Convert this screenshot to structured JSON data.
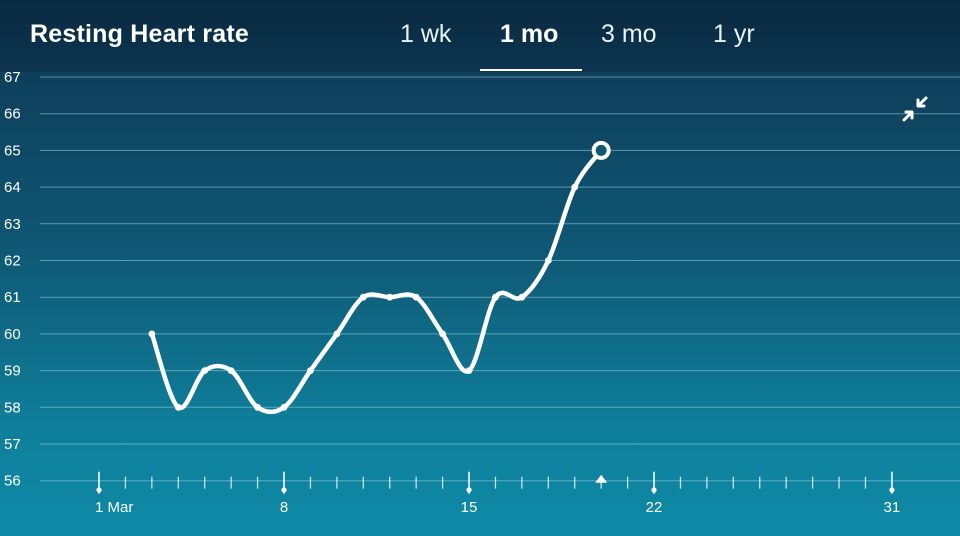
{
  "header": {
    "title": "Resting Heart rate",
    "tabs": [
      {
        "label": "1 wk",
        "active": false
      },
      {
        "label": "1 mo",
        "active": true
      },
      {
        "label": "3 mo",
        "active": false
      },
      {
        "label": "1 yr",
        "active": false
      }
    ]
  },
  "controls": {
    "collapse_icon": "collapse-arrows-icon"
  },
  "chart_data": {
    "type": "line",
    "ylim": [
      56,
      67
    ],
    "y_ticks": [
      67,
      66,
      65,
      64,
      63,
      62,
      61,
      60,
      59,
      58,
      57,
      56
    ],
    "xlim": [
      1,
      31
    ],
    "x_tick_labels": [
      {
        "day": 1,
        "label": "1 Mar"
      },
      {
        "day": 8,
        "label": "8"
      },
      {
        "day": 15,
        "label": "15"
      },
      {
        "day": 22,
        "label": "22"
      },
      {
        "day": 31,
        "label": "31"
      }
    ],
    "grid": true,
    "series": [
      {
        "x": [
          3,
          4,
          5,
          6,
          7,
          8,
          9,
          10,
          11,
          12,
          13,
          14,
          15,
          16,
          17,
          18,
          19,
          20
        ],
        "values": [
          60,
          58,
          59,
          59,
          58,
          58,
          59,
          60,
          61,
          61,
          61,
          60,
          59,
          61,
          61,
          62,
          64,
          65
        ]
      }
    ],
    "highlighted_day": 20,
    "colors": {
      "line": "#ffffff",
      "grid": "#8fc7d8"
    }
  }
}
